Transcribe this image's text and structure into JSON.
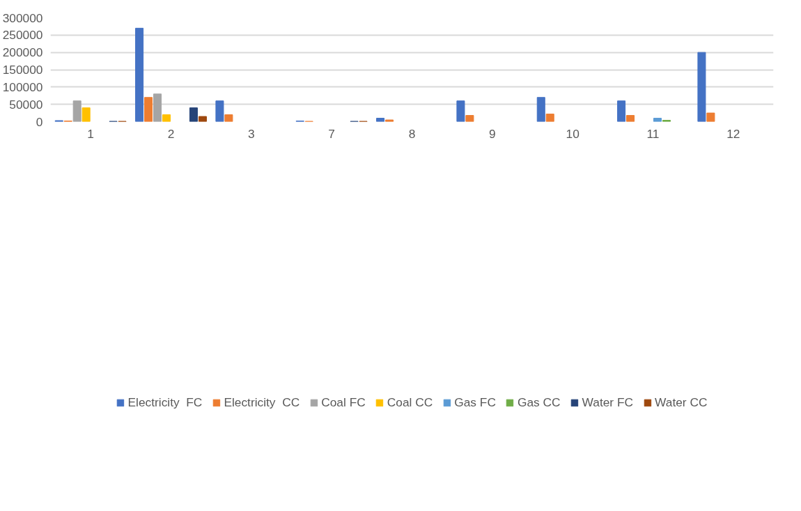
{
  "chart_data": {
    "type": "bar",
    "categories": [
      "1",
      "2",
      "3",
      "7",
      "8",
      "9",
      "10",
      "11",
      "12"
    ],
    "series": [
      {
        "name": "Electricity  FC",
        "color": "#4472c4",
        "values": [
          3000,
          270000,
          60000,
          2000,
          10000,
          60000,
          70000,
          60000,
          200000
        ]
      },
      {
        "name": "Electricity  CC",
        "color": "#ed7d31",
        "values": [
          2000,
          70000,
          20000,
          1000,
          5000,
          18000,
          22000,
          18000,
          25000
        ]
      },
      {
        "name": "Coal FC",
        "color": "#a5a5a5",
        "values": [
          60000,
          80000,
          null,
          null,
          null,
          null,
          null,
          null,
          null
        ]
      },
      {
        "name": "Coal CC",
        "color": "#ffc000",
        "values": [
          40000,
          20000,
          null,
          null,
          null,
          null,
          null,
          null,
          null
        ]
      },
      {
        "name": "Gas FC",
        "color": "#5b9bd5",
        "values": [
          null,
          null,
          null,
          null,
          null,
          null,
          null,
          10000,
          null
        ]
      },
      {
        "name": "Gas CC",
        "color": "#70ad47",
        "values": [
          null,
          null,
          null,
          null,
          null,
          null,
          null,
          4000,
          null
        ]
      },
      {
        "name": "Water FC",
        "color": "#264478",
        "values": [
          1000,
          40000,
          null,
          1000,
          null,
          null,
          null,
          null,
          null
        ]
      },
      {
        "name": "Water CC",
        "color": "#9e480e",
        "values": [
          1000,
          15000,
          null,
          1000,
          null,
          null,
          null,
          null,
          null
        ]
      }
    ],
    "ylim": [
      0,
      300000
    ],
    "yticks": [
      0,
      50000,
      100000,
      150000,
      200000,
      250000,
      300000
    ],
    "grid": "y",
    "legend": "bottom"
  }
}
